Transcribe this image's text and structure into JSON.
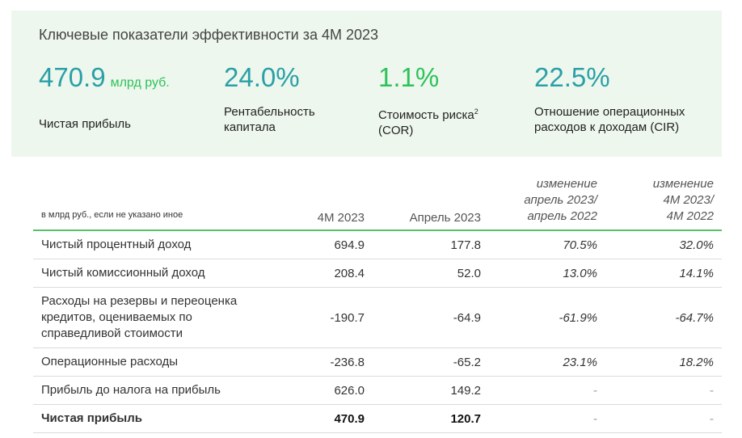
{
  "panel": {
    "title": "Ключевые показатели эффективности за 4М 2023",
    "kpis": [
      {
        "value": "470.9",
        "unit": "млрд руб.",
        "label": "Чистая прибыль"
      },
      {
        "value": "24.0%",
        "label_line1": "Рентабельность",
        "label_line2": "капитала"
      },
      {
        "value": "1.1%",
        "label_line1": "Стоимость риска",
        "label_sup": "2",
        "label_line2": "(COR)"
      },
      {
        "value": "22.5%",
        "label_line1": "Отношение операционных",
        "label_line2": "расходов к доходам (CIR)"
      }
    ],
    "colors": {
      "teal": "#2aa0a6",
      "green": "#2ec25a",
      "panel_bg": "#eef7ee",
      "rule": "#55c16b"
    }
  },
  "table": {
    "note": "в млрд руб., если не указано иное",
    "headers": {
      "col1": "4М 2023",
      "col2": "Апрель 2023",
      "col3": [
        "изменение",
        "апрель 2023/",
        "апрель 2022"
      ],
      "col4": [
        "изменение",
        "4М 2023/",
        "4М 2022"
      ]
    },
    "rows": [
      {
        "label": [
          "Чистый процентный доход"
        ],
        "v1": "694.9",
        "v2": "177.8",
        "v3": "70.5%",
        "v4": "32.0%"
      },
      {
        "label": [
          "Чистый комиссионный доход"
        ],
        "v1": "208.4",
        "v2": "52.0",
        "v3": "13.0%",
        "v4": "14.1%"
      },
      {
        "label": [
          "Расходы на резервы и переоценка",
          "кредитов, оцениваемых по",
          "справедливой стоимости"
        ],
        "v1": "-190.7",
        "v2": "-64.9",
        "v3": "-61.9%",
        "v4": "-64.7%"
      },
      {
        "label": [
          "Операционные расходы"
        ],
        "v1": "-236.8",
        "v2": "-65.2",
        "v3": "23.1%",
        "v4": "18.2%"
      },
      {
        "label": [
          "Прибыль до налога на прибыль"
        ],
        "v1": "626.0",
        "v2": "149.2",
        "v3": "-",
        "v4": "-"
      },
      {
        "label": [
          "Чистая прибыль"
        ],
        "v1": "470.9",
        "v2": "120.7",
        "v3": "-",
        "v4": "-"
      }
    ]
  }
}
